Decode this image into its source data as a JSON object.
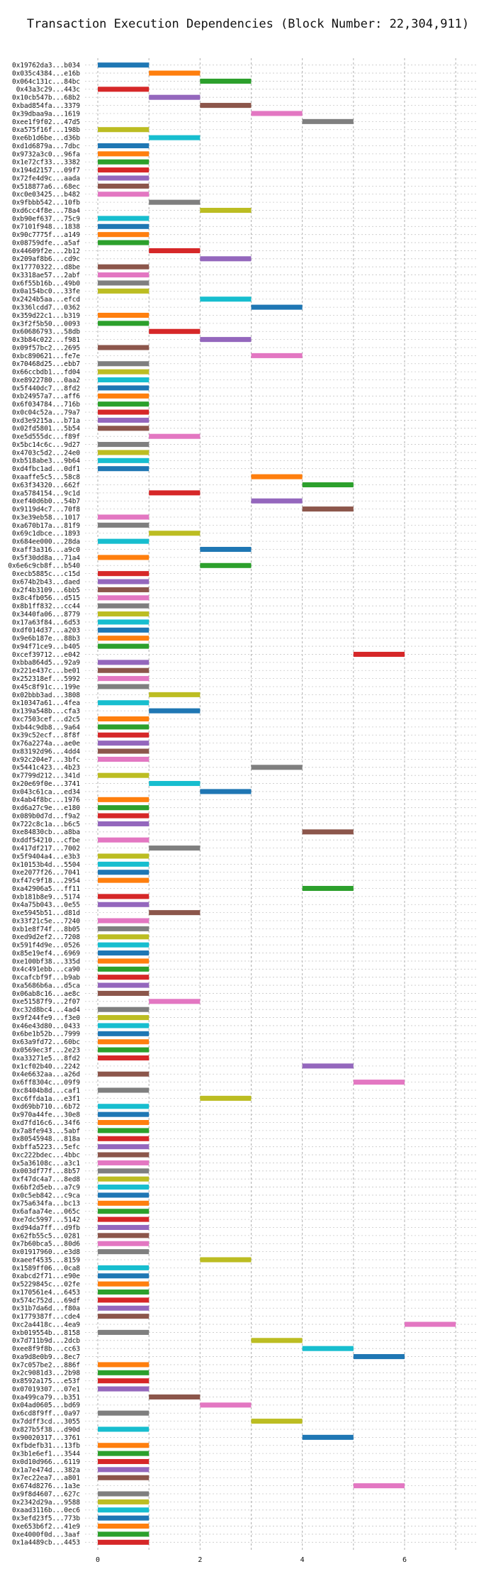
{
  "chart_data": {
    "type": "gantt",
    "title": "Transaction Execution Dependencies (Block Number: 22,304,911)",
    "xlabel": "",
    "ylabel": "",
    "xlim": [
      -0.25,
      7.4
    ],
    "xticks": [
      0,
      2,
      4,
      6
    ],
    "grid": true,
    "palette": [
      "#1f77b4",
      "#ff7f0e",
      "#2ca02c",
      "#d62728",
      "#9467bd",
      "#8c564b",
      "#e377c2",
      "#7f7f7f",
      "#bcbd22",
      "#17becf"
    ],
    "rows": [
      {
        "label": "0x19762da3...b034",
        "start": 0,
        "end": 1
      },
      {
        "label": "0x035c4384...e16b",
        "start": 1,
        "end": 2
      },
      {
        "label": "0x064c131c...84bc",
        "start": 2,
        "end": 3
      },
      {
        "label": "0x43a3c29...443c",
        "start": 0,
        "end": 1
      },
      {
        "label": "0x10cb547b...68b2",
        "start": 1,
        "end": 2
      },
      {
        "label": "0xbad854fa...3379",
        "start": 2,
        "end": 3
      },
      {
        "label": "0x39dbaa9a...1619",
        "start": 3,
        "end": 4
      },
      {
        "label": "0xee1f9f02...47d5",
        "start": 4,
        "end": 5
      },
      {
        "label": "0xa575f16f...198b",
        "start": 0,
        "end": 1
      },
      {
        "label": "0xe6b1d6be...d36b",
        "start": 1,
        "end": 2
      },
      {
        "label": "0xd1d6879a...7dbc",
        "start": 0,
        "end": 1
      },
      {
        "label": "0x9732a3c0...96fa",
        "start": 0,
        "end": 1
      },
      {
        "label": "0x1e72cf33...3382",
        "start": 0,
        "end": 1
      },
      {
        "label": "0x194d2157...09f7",
        "start": 0,
        "end": 1
      },
      {
        "label": "0x72fe4d9c...aada",
        "start": 0,
        "end": 1
      },
      {
        "label": "0x518877a6...68ec",
        "start": 0,
        "end": 1
      },
      {
        "label": "0xc0e03425...b482",
        "start": 0,
        "end": 1
      },
      {
        "label": "0x9fbbb542...10fb",
        "start": 1,
        "end": 2
      },
      {
        "label": "0xd6cc4f8e...78a4",
        "start": 2,
        "end": 3
      },
      {
        "label": "0xb90ef637...75c9",
        "start": 0,
        "end": 1
      },
      {
        "label": "0x7101f948...1838",
        "start": 0,
        "end": 1
      },
      {
        "label": "0x90c7775f...a149",
        "start": 0,
        "end": 1
      },
      {
        "label": "0x08759dfe...a5af",
        "start": 0,
        "end": 1
      },
      {
        "label": "0x44609f2e...2b12",
        "start": 1,
        "end": 2
      },
      {
        "label": "0x209af8b6...cd9c",
        "start": 2,
        "end": 3
      },
      {
        "label": "0x17770322...d8be",
        "start": 0,
        "end": 1
      },
      {
        "label": "0x3318ae57...2abf",
        "start": 0,
        "end": 1
      },
      {
        "label": "0x6f55b16b...49b0",
        "start": 0,
        "end": 1
      },
      {
        "label": "0x0a154bc0...33fe",
        "start": 0,
        "end": 1
      },
      {
        "label": "0x2424b5aa...efcd",
        "start": 2,
        "end": 3
      },
      {
        "label": "0x336lcdd7...0362",
        "start": 3,
        "end": 4
      },
      {
        "label": "0x359d22c1...b319",
        "start": 0,
        "end": 1
      },
      {
        "label": "0x3f2f5b50...0093",
        "start": 0,
        "end": 1
      },
      {
        "label": "0x60686793...58db",
        "start": 1,
        "end": 2
      },
      {
        "label": "0x3b84c022...f981",
        "start": 2,
        "end": 3
      },
      {
        "label": "0x09f57bc2...2695",
        "start": 0,
        "end": 1
      },
      {
        "label": "0xbc890621...fe7e",
        "start": 3,
        "end": 4
      },
      {
        "label": "0x70468d25...ebb7",
        "start": 0,
        "end": 1
      },
      {
        "label": "0x66ccbdb1...fd04",
        "start": 0,
        "end": 1
      },
      {
        "label": "0xe8922780...0aa2",
        "start": 0,
        "end": 1
      },
      {
        "label": "0x5f440dc7...8fd2",
        "start": 0,
        "end": 1
      },
      {
        "label": "0xb24957a7...aff6",
        "start": 0,
        "end": 1
      },
      {
        "label": "0x6f034784...716b",
        "start": 0,
        "end": 1
      },
      {
        "label": "0x0c04c52a...79a7",
        "start": 0,
        "end": 1
      },
      {
        "label": "0xd3e9215a...b71a",
        "start": 0,
        "end": 1
      },
      {
        "label": "0x02fd5801...5b54",
        "start": 0,
        "end": 1
      },
      {
        "label": "0xe5d555dc...f89f",
        "start": 1,
        "end": 2
      },
      {
        "label": "0x5bc14c6c...9d27",
        "start": 0,
        "end": 1
      },
      {
        "label": "0x4703c5d2...24e0",
        "start": 0,
        "end": 1
      },
      {
        "label": "0xb518abe3...9b64",
        "start": 0,
        "end": 1
      },
      {
        "label": "0xd4fbc1ad...0df1",
        "start": 0,
        "end": 1
      },
      {
        "label": "0xaaffe5c5...58c8",
        "start": 3,
        "end": 4
      },
      {
        "label": "0x63f34320...662f",
        "start": 4,
        "end": 5
      },
      {
        "label": "0xa5784154...9c1d",
        "start": 1,
        "end": 2
      },
      {
        "label": "0xef40d6b0...54b7",
        "start": 3,
        "end": 4
      },
      {
        "label": "0x9119d4c7...70f8",
        "start": 4,
        "end": 5
      },
      {
        "label": "0x3e39eb58...1017",
        "start": 0,
        "end": 1
      },
      {
        "label": "0xa670b17a...81f9",
        "start": 0,
        "end": 1
      },
      {
        "label": "0x69c1dbce...1893",
        "start": 1,
        "end": 2
      },
      {
        "label": "0x684ee000...28da",
        "start": 0,
        "end": 1
      },
      {
        "label": "0xaff3a316...a9c0",
        "start": 2,
        "end": 3
      },
      {
        "label": "0x5f30dd8a...71a4",
        "start": 0,
        "end": 1
      },
      {
        "label": "0x6e6c9cb8f...b540",
        "start": 2,
        "end": 3
      },
      {
        "label": "0xecb5885c...c15d",
        "start": 0,
        "end": 1
      },
      {
        "label": "0x674b2b43...daed",
        "start": 0,
        "end": 1
      },
      {
        "label": "0x2f4b3109...6bb5",
        "start": 0,
        "end": 1
      },
      {
        "label": "0x8c4fb056...d515",
        "start": 0,
        "end": 1
      },
      {
        "label": "0x8b1ff832...cc44",
        "start": 0,
        "end": 1
      },
      {
        "label": "0x3440fa06...8779",
        "start": 0,
        "end": 1
      },
      {
        "label": "0x17a63f84...6d53",
        "start": 0,
        "end": 1
      },
      {
        "label": "0xdf014d37...a203",
        "start": 0,
        "end": 1
      },
      {
        "label": "0x9e6b187e...88b3",
        "start": 0,
        "end": 1
      },
      {
        "label": "0x94f71ce9...b405",
        "start": 0,
        "end": 1
      },
      {
        "label": "0xcef39712...e042",
        "start": 5,
        "end": 6
      },
      {
        "label": "0xbba864d5...92a9",
        "start": 0,
        "end": 1
      },
      {
        "label": "0x221e437c...be01",
        "start": 0,
        "end": 1
      },
      {
        "label": "0x252318ef...5992",
        "start": 0,
        "end": 1
      },
      {
        "label": "0x45c8f91c...199e",
        "start": 0,
        "end": 1
      },
      {
        "label": "0x02bbb3ad...3808",
        "start": 1,
        "end": 2
      },
      {
        "label": "0x10347a61...4fea",
        "start": 0,
        "end": 1
      },
      {
        "label": "0x139a548b...cfa3",
        "start": 1,
        "end": 2
      },
      {
        "label": "0xc7503cef...d2c5",
        "start": 0,
        "end": 1
      },
      {
        "label": "0xb44c9db8...9a64",
        "start": 0,
        "end": 1
      },
      {
        "label": "0x39c52ecf...8f8f",
        "start": 0,
        "end": 1
      },
      {
        "label": "0x76a2274a...ae0e",
        "start": 0,
        "end": 1
      },
      {
        "label": "0x83192d96...4dd4",
        "start": 0,
        "end": 1
      },
      {
        "label": "0x92c204e7...3bfc",
        "start": 0,
        "end": 1
      },
      {
        "label": "0x5441c423...4b23",
        "start": 3,
        "end": 4
      },
      {
        "label": "0x7799d212...341d",
        "start": 0,
        "end": 1
      },
      {
        "label": "0x20e69f0e...3741",
        "start": 1,
        "end": 2
      },
      {
        "label": "0x043c61ca...ed34",
        "start": 2,
        "end": 3
      },
      {
        "label": "0x4ab4f8bc...1976",
        "start": 0,
        "end": 1
      },
      {
        "label": "0xd6a27c9e...e180",
        "start": 0,
        "end": 1
      },
      {
        "label": "0x089b0d7d...f9a2",
        "start": 0,
        "end": 1
      },
      {
        "label": "0x722c8c1a...b6c5",
        "start": 0,
        "end": 1
      },
      {
        "label": "0xe84830cb...a8ba",
        "start": 4,
        "end": 5
      },
      {
        "label": "0xddf54210...cfbe",
        "start": 0,
        "end": 1
      },
      {
        "label": "0x417df217...7002",
        "start": 1,
        "end": 2
      },
      {
        "label": "0x5f9404a4...e3b3",
        "start": 0,
        "end": 1
      },
      {
        "label": "0x10153b4d...5504",
        "start": 0,
        "end": 1
      },
      {
        "label": "0xe2077f26...7041",
        "start": 0,
        "end": 1
      },
      {
        "label": "0xf47c9f18...2954",
        "start": 0,
        "end": 1
      },
      {
        "label": "0xa42906a5...ff11",
        "start": 4,
        "end": 5
      },
      {
        "label": "0xb181b8e9...5174",
        "start": 0,
        "end": 1
      },
      {
        "label": "0x4a75b043...0e55",
        "start": 0,
        "end": 1
      },
      {
        "label": "0xe5945b51...d81d",
        "start": 1,
        "end": 2
      },
      {
        "label": "0x33f21c5e...7240",
        "start": 0,
        "end": 1
      },
      {
        "label": "0xb1e8f74f...8b05",
        "start": 0,
        "end": 1
      },
      {
        "label": "0xed9d2ef2...7208",
        "start": 0,
        "end": 1
      },
      {
        "label": "0x591f4d9e...0526",
        "start": 0,
        "end": 1
      },
      {
        "label": "0x85e19ef4...6969",
        "start": 0,
        "end": 1
      },
      {
        "label": "0xe100bf38...335d",
        "start": 0,
        "end": 1
      },
      {
        "label": "0x4c491ebb...ca90",
        "start": 0,
        "end": 1
      },
      {
        "label": "0xcafcbf9f...b9ab",
        "start": 0,
        "end": 1
      },
      {
        "label": "0xa5686b6a...d5ca",
        "start": 0,
        "end": 1
      },
      {
        "label": "0x06ab8c16...ae8c",
        "start": 0,
        "end": 1
      },
      {
        "label": "0xe51587f9...2f07",
        "start": 1,
        "end": 2
      },
      {
        "label": "0xc32d8bc4...4ad4",
        "start": 0,
        "end": 1
      },
      {
        "label": "0x9f244fe9...f3e0",
        "start": 0,
        "end": 1
      },
      {
        "label": "0x46e43d80...0433",
        "start": 0,
        "end": 1
      },
      {
        "label": "0x6be1b52b...7999",
        "start": 0,
        "end": 1
      },
      {
        "label": "0x63a9fd72...60bc",
        "start": 0,
        "end": 1
      },
      {
        "label": "0x0569ec3f...2e23",
        "start": 0,
        "end": 1
      },
      {
        "label": "0xa33271e5...8fd2",
        "start": 0,
        "end": 1
      },
      {
        "label": "0x1cf02b40...2242",
        "start": 4,
        "end": 5
      },
      {
        "label": "0x4e6632aa...a26d",
        "start": 0,
        "end": 1
      },
      {
        "label": "0x6ff8304c...09f9",
        "start": 5,
        "end": 6
      },
      {
        "label": "0xc8404b8d...caf1",
        "start": 0,
        "end": 1
      },
      {
        "label": "0xc6ffda1a...e3f1",
        "start": 2,
        "end": 3
      },
      {
        "label": "0xd69bb710...6b72",
        "start": 0,
        "end": 1
      },
      {
        "label": "0x970a44fe...30e8",
        "start": 0,
        "end": 1
      },
      {
        "label": "0xd7fd16c6...34f6",
        "start": 0,
        "end": 1
      },
      {
        "label": "0x7a8fe943...5abf",
        "start": 0,
        "end": 1
      },
      {
        "label": "0x80545948...818a",
        "start": 0,
        "end": 1
      },
      {
        "label": "0xbffa5223...5efc",
        "start": 0,
        "end": 1
      },
      {
        "label": "0xc222bdec...4bbc",
        "start": 0,
        "end": 1
      },
      {
        "label": "0x5a36108c...a3c1",
        "start": 0,
        "end": 1
      },
      {
        "label": "0x003df77f...8b57",
        "start": 0,
        "end": 1
      },
      {
        "label": "0xf47dc4a7...8ed8",
        "start": 0,
        "end": 1
      },
      {
        "label": "0x6bf2d5eb...a7c9",
        "start": 0,
        "end": 1
      },
      {
        "label": "0x0c5eb842...c9ca",
        "start": 0,
        "end": 1
      },
      {
        "label": "0x75a634fa...bc13",
        "start": 0,
        "end": 1
      },
      {
        "label": "0x6afaa74e...065c",
        "start": 0,
        "end": 1
      },
      {
        "label": "0xe7dc5997...5142",
        "start": 0,
        "end": 1
      },
      {
        "label": "0xd94da7ff...d9fb",
        "start": 0,
        "end": 1
      },
      {
        "label": "0x62fb55c5...0281",
        "start": 0,
        "end": 1
      },
      {
        "label": "0x7b60bca5...80d6",
        "start": 0,
        "end": 1
      },
      {
        "label": "0x01917960...e3d8",
        "start": 0,
        "end": 1
      },
      {
        "label": "0xaeef4535...8159",
        "start": 2,
        "end": 3
      },
      {
        "label": "0x1589ff06...0ca8",
        "start": 0,
        "end": 1
      },
      {
        "label": "0xabcd2f71...e90e",
        "start": 0,
        "end": 1
      },
      {
        "label": "0x5229845c...02fe",
        "start": 0,
        "end": 1
      },
      {
        "label": "0x170561e4...6453",
        "start": 0,
        "end": 1
      },
      {
        "label": "0x574c752d...69df",
        "start": 0,
        "end": 1
      },
      {
        "label": "0x31b7da6d...f80a",
        "start": 0,
        "end": 1
      },
      {
        "label": "0x1779387f...cde4",
        "start": 0,
        "end": 1
      },
      {
        "label": "0xc2a4418c...4ea9",
        "start": 6,
        "end": 7
      },
      {
        "label": "0xb019554b...8158",
        "start": 0,
        "end": 1
      },
      {
        "label": "0x7d711b9d...2dcb",
        "start": 3,
        "end": 4
      },
      {
        "label": "0xee8f9f8b...cc63",
        "start": 4,
        "end": 5
      },
      {
        "label": "0xa9d8e0b9...8ec7",
        "start": 5,
        "end": 6
      },
      {
        "label": "0x7c057be2...886f",
        "start": 0,
        "end": 1
      },
      {
        "label": "0x2c9081d3...2b98",
        "start": 0,
        "end": 1
      },
      {
        "label": "0x8592a175...e53f",
        "start": 0,
        "end": 1
      },
      {
        "label": "0x07019307...07e1",
        "start": 0,
        "end": 1
      },
      {
        "label": "0xa499ca79...b351",
        "start": 1,
        "end": 2
      },
      {
        "label": "0x04ad0605...bd69",
        "start": 2,
        "end": 3
      },
      {
        "label": "0x6cd8f9ff...0a97",
        "start": 0,
        "end": 1
      },
      {
        "label": "0x7ddff3cd...3055",
        "start": 3,
        "end": 4
      },
      {
        "label": "0x827b5f38...d90d",
        "start": 0,
        "end": 1
      },
      {
        "label": "0x90020317...3761",
        "start": 4,
        "end": 5
      },
      {
        "label": "0xfbdefb31...13fb",
        "start": 0,
        "end": 1
      },
      {
        "label": "0x3b1e6ef1...3544",
        "start": 0,
        "end": 1
      },
      {
        "label": "0x0d10d966...6119",
        "start": 0,
        "end": 1
      },
      {
        "label": "0x1a7e474d...382a",
        "start": 0,
        "end": 1
      },
      {
        "label": "0x7ec22ea7...a801",
        "start": 0,
        "end": 1
      },
      {
        "label": "0x674d8276...1a3e",
        "start": 5,
        "end": 6
      },
      {
        "label": "0x9f8d4607...627c",
        "start": 0,
        "end": 1
      },
      {
        "label": "0x2342d29a...9588",
        "start": 0,
        "end": 1
      },
      {
        "label": "0xaad3116b...0ec6",
        "start": 0,
        "end": 1
      },
      {
        "label": "0x3efd23f5...773b",
        "start": 0,
        "end": 1
      },
      {
        "label": "0xe653b6f2...41e9",
        "start": 0,
        "end": 1
      },
      {
        "label": "0xe4000f0d...3aaf",
        "start": 0,
        "end": 1
      },
      {
        "label": "0x1a4489cb...4453",
        "start": 0,
        "end": 1
      }
    ]
  }
}
